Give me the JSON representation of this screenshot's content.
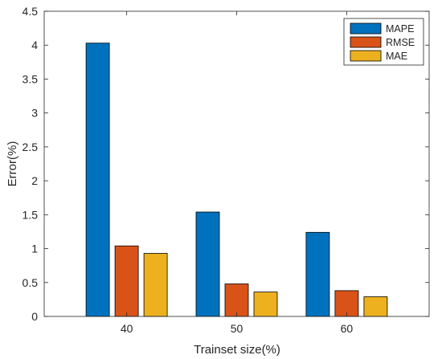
{
  "chart_data": {
    "type": "bar",
    "categories": [
      "40",
      "50",
      "60"
    ],
    "series": [
      {
        "name": "MAPE",
        "values": [
          4.03,
          1.54,
          1.24
        ],
        "color": "#0072BD"
      },
      {
        "name": "RMSE",
        "values": [
          1.04,
          0.48,
          0.38
        ],
        "color": "#D95319"
      },
      {
        "name": "MAE",
        "values": [
          0.93,
          0.36,
          0.29
        ],
        "color": "#EDB120"
      }
    ],
    "xlabel": "Trainset size(%)",
    "ylabel": "Error(%)",
    "ylim": [
      0,
      4.5
    ],
    "yticks": [
      "0",
      "0.5",
      "1",
      "1.5",
      "2",
      "2.5",
      "3",
      "3.5",
      "4",
      "4.5"
    ],
    "grid": false,
    "legend_position": "top-right",
    "box": true
  }
}
